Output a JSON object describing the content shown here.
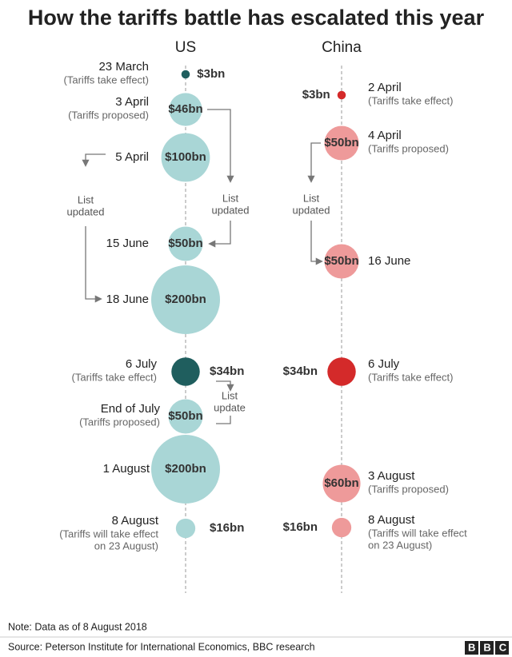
{
  "chart_data": {
    "type": "bubble-timeline",
    "title": "How the tariffs battle has escalated this year",
    "series": [
      {
        "name": "US",
        "categories": [
          "23 March",
          "3 April",
          "5 April",
          "15 June",
          "18 June",
          "6 July",
          "End of July",
          "1 August",
          "8 August"
        ],
        "notes": [
          [
            "(Tariffs take effect)"
          ],
          [
            "(Tariffs proposed)"
          ],
          null,
          null,
          null,
          [
            "(Tariffs take effect)"
          ],
          [
            "(Tariffs proposed)"
          ],
          null,
          [
            "(Tariffs will take effect",
            "on 23 August)"
          ]
        ],
        "values": [
          3,
          46,
          100,
          50,
          200,
          34,
          50,
          200,
          16
        ],
        "value_labels": [
          "$3bn",
          "$46bn",
          "$100bn",
          "$50bn",
          "$200bn",
          "$34bn",
          "$50bn",
          "$200bn",
          "$16bn"
        ],
        "colors": [
          "#1f5e5e",
          "#a9d6d6",
          "#a9d6d6",
          "#a9d6d6",
          "#a9d6d6",
          "#1f5e5e",
          "#a9d6d6",
          "#a9d6d6",
          "#a9d6d6"
        ]
      },
      {
        "name": "China",
        "categories": [
          "2 April",
          "4 April",
          "16 June",
          "6 July",
          "3 August",
          "8 August"
        ],
        "notes": [
          [
            "(Tariffs take effect)"
          ],
          [
            "(Tariffs proposed)"
          ],
          null,
          [
            "(Tariffs take effect)"
          ],
          [
            "(Tariffs proposed)"
          ],
          [
            "(Tariffs will take effect",
            "on 23 August)"
          ]
        ],
        "values": [
          3,
          50,
          50,
          34,
          60,
          16
        ],
        "value_labels": [
          "$3bn",
          "$50bn",
          "$50bn",
          "$34bn",
          "$60bn",
          "$16bn"
        ],
        "colors": [
          "#d42a2a",
          "#ee9a9a",
          "#ee9a9a",
          "#d42a2a",
          "#ee9a9a",
          "#ee9a9a"
        ]
      }
    ],
    "annotations": [
      [
        "List",
        "updated"
      ],
      [
        "List",
        "updated"
      ],
      [
        "List",
        "updated"
      ],
      [
        "List",
        "update"
      ]
    ],
    "note": "Note: Data as of 8 August 2018",
    "source": "Source: Peterson Institute for International Economics, BBC research",
    "logo": "BBC"
  }
}
